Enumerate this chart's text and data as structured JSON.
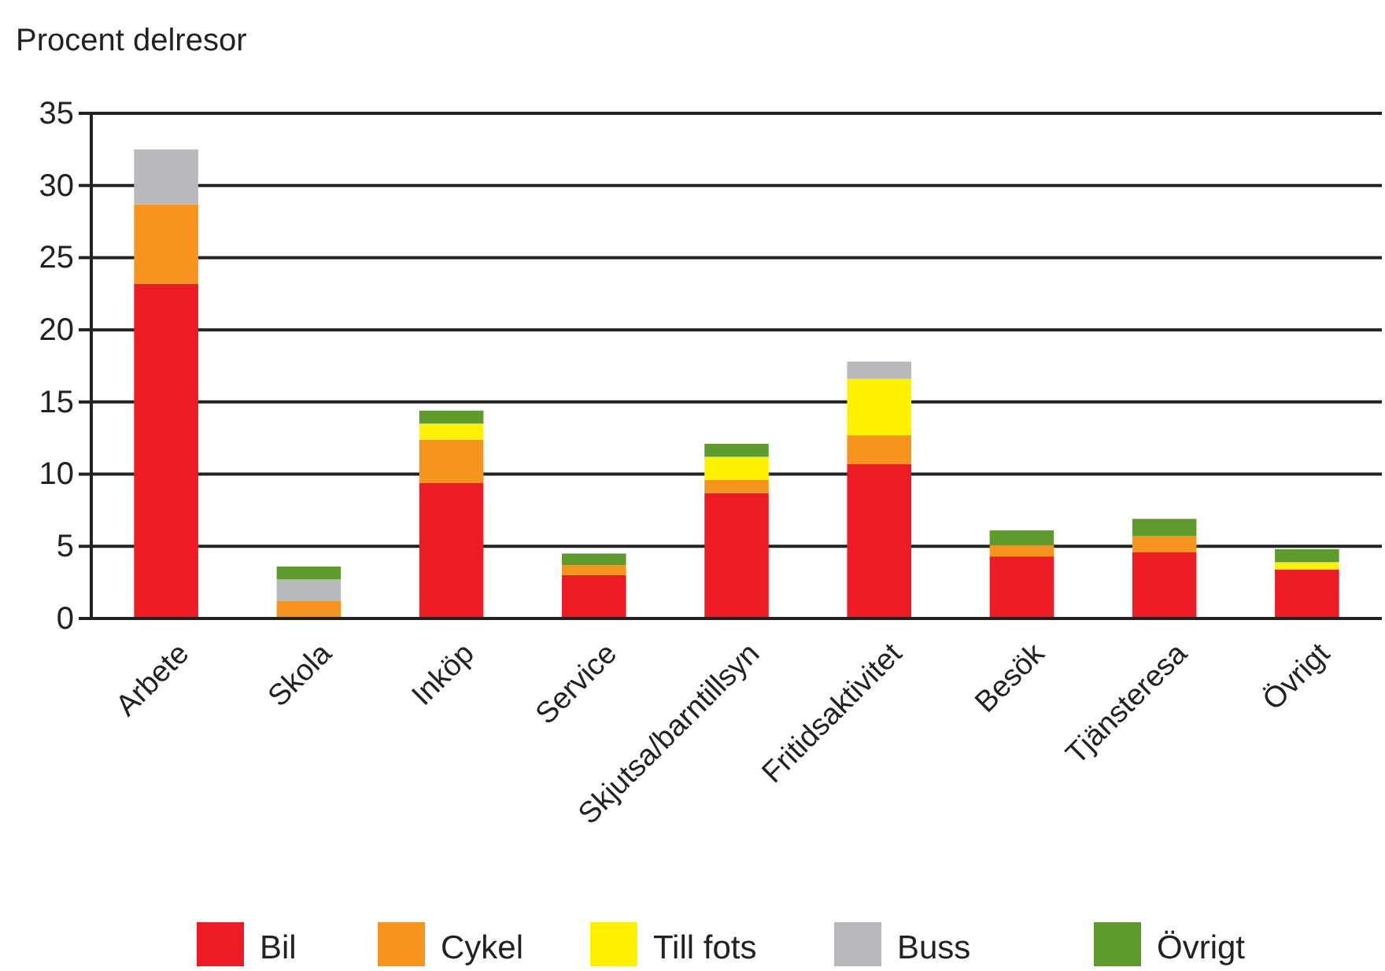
{
  "chart_data": {
    "type": "bar",
    "stacked": true,
    "ylabel": "Procent delresor",
    "categories": [
      "Arbete",
      "Skola",
      "Inköp",
      "Service",
      "Skjutsa/barntillsyn",
      "Fritidsaktivitet",
      "Besök",
      "Tjänsteresa",
      "Övrigt"
    ],
    "series": [
      {
        "name": "Bil",
        "color": "#ed1c24",
        "values": [
          23.2,
          0,
          9.4,
          3.0,
          8.7,
          10.7,
          4.3,
          4.6,
          3.4
        ]
      },
      {
        "name": "Cykel",
        "color": "#f7941d",
        "values": [
          5.5,
          1.2,
          3.0,
          0.7,
          0.9,
          2.0,
          0.8,
          1.1,
          0
        ]
      },
      {
        "name": "Till fots",
        "color": "#fff200",
        "values": [
          0,
          0,
          1.1,
          0,
          1.6,
          3.9,
          0,
          0,
          0.5
        ]
      },
      {
        "name": "Buss",
        "color": "#b7b9bc",
        "values": [
          3.8,
          1.5,
          0,
          0,
          0,
          1.2,
          0,
          0,
          0
        ]
      },
      {
        "name": "Övrigt",
        "color": "#5d9b2c",
        "values": [
          0,
          0.9,
          0.9,
          0.8,
          0.9,
          0,
          1.0,
          1.2,
          0.9
        ]
      }
    ],
    "ylim": [
      0,
      35
    ],
    "yticks": [
      0,
      5,
      10,
      15,
      20,
      25,
      30,
      35
    ],
    "grid": "y",
    "legend": "bottom"
  }
}
